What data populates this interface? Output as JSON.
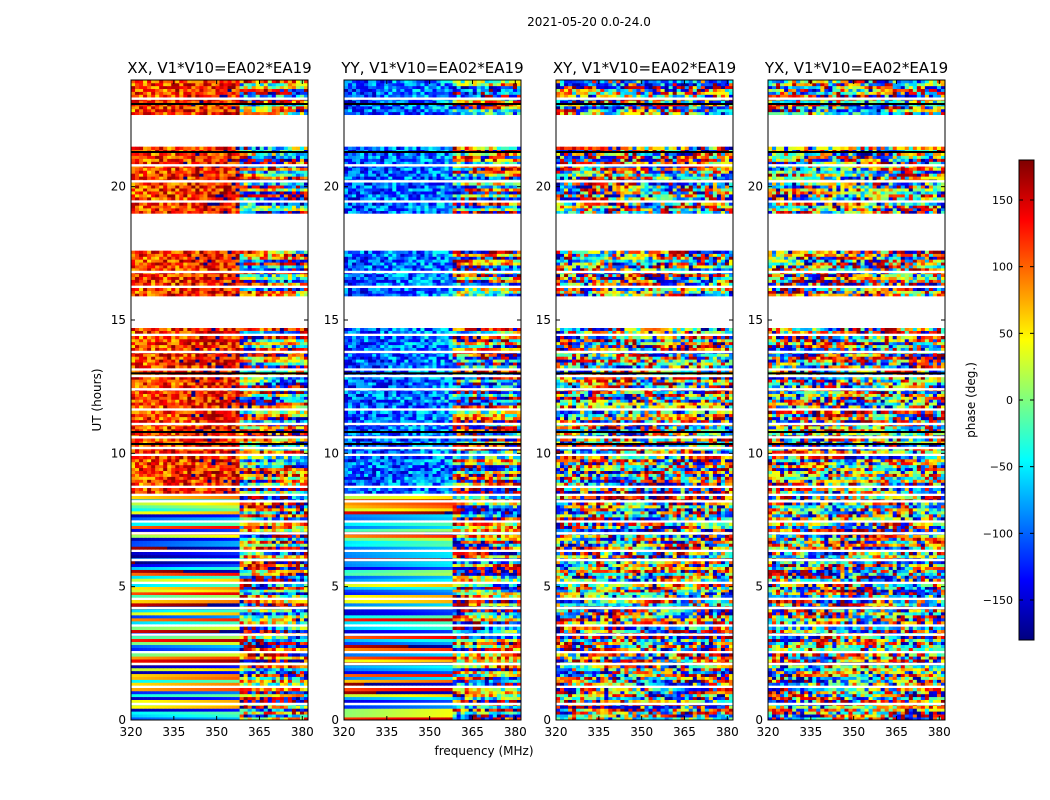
{
  "chart_data": {
    "type": "heatmap",
    "suptitle": "2021-05-20 0.0-24.0",
    "xlabel": "frequency (MHz)",
    "ylabel": "UT (hours)",
    "xlim": [
      320,
      382
    ],
    "ylim": [
      0,
      24
    ],
    "xticks": [
      320,
      335,
      350,
      365,
      380
    ],
    "yticks": [
      0,
      5,
      10,
      15,
      20
    ],
    "colorbar": {
      "label": "phase (deg.)",
      "range": [
        -180,
        180
      ],
      "ticks": [
        150,
        100,
        50,
        0,
        -50,
        -100,
        -150
      ],
      "colormap": "jet",
      "stops": [
        "#00007f",
        "#0000ff",
        "#007fff",
        "#00ffff",
        "#7fff7f",
        "#ffff00",
        "#ff7f00",
        "#ff0000",
        "#7f0000"
      ]
    },
    "panels": [
      {
        "title": "XX, V1*V10=EA02*EA19",
        "pattern": "parallel",
        "base_phase": 110,
        "y_offset": 0
      },
      {
        "title": "YY, V1*V10=EA02*EA19",
        "pattern": "parallel",
        "base_phase": -110,
        "y_offset": 5
      },
      {
        "title": "XY, V1*V10=EA02*EA19",
        "pattern": "cross",
        "base_phase": 0,
        "y_offset": 11
      },
      {
        "title": "YX, V1*V10=EA02*EA19",
        "pattern": "cross",
        "base_phase": 0,
        "y_offset": 17
      }
    ],
    "data_hour_ranges": [
      [
        0.0,
        1.2
      ],
      [
        1.3,
        2.5
      ],
      [
        2.6,
        3.5
      ],
      [
        3.6,
        4.5
      ],
      [
        4.6,
        5.1
      ],
      [
        5.2,
        6.3
      ],
      [
        6.4,
        7.4
      ],
      [
        7.5,
        8.4
      ],
      [
        8.5,
        8.7
      ],
      [
        8.8,
        9.9
      ],
      [
        10.0,
        11.6
      ],
      [
        11.7,
        13.1
      ],
      [
        13.2,
        14.4
      ],
      [
        14.5,
        14.7
      ],
      [
        15.9,
        16.2
      ],
      [
        16.3,
        17.6
      ],
      [
        19.0,
        19.4
      ],
      [
        19.5,
        21.5
      ],
      [
        22.7,
        24.0
      ]
    ],
    "flagged_lines_hours": [
      0.6,
      2.1,
      3.2,
      4.2,
      6.0,
      7.0,
      8.2,
      10.2,
      10.6,
      11.1,
      12.4,
      12.9,
      13.8,
      16.8,
      20.2,
      20.8,
      23.3
    ]
  }
}
